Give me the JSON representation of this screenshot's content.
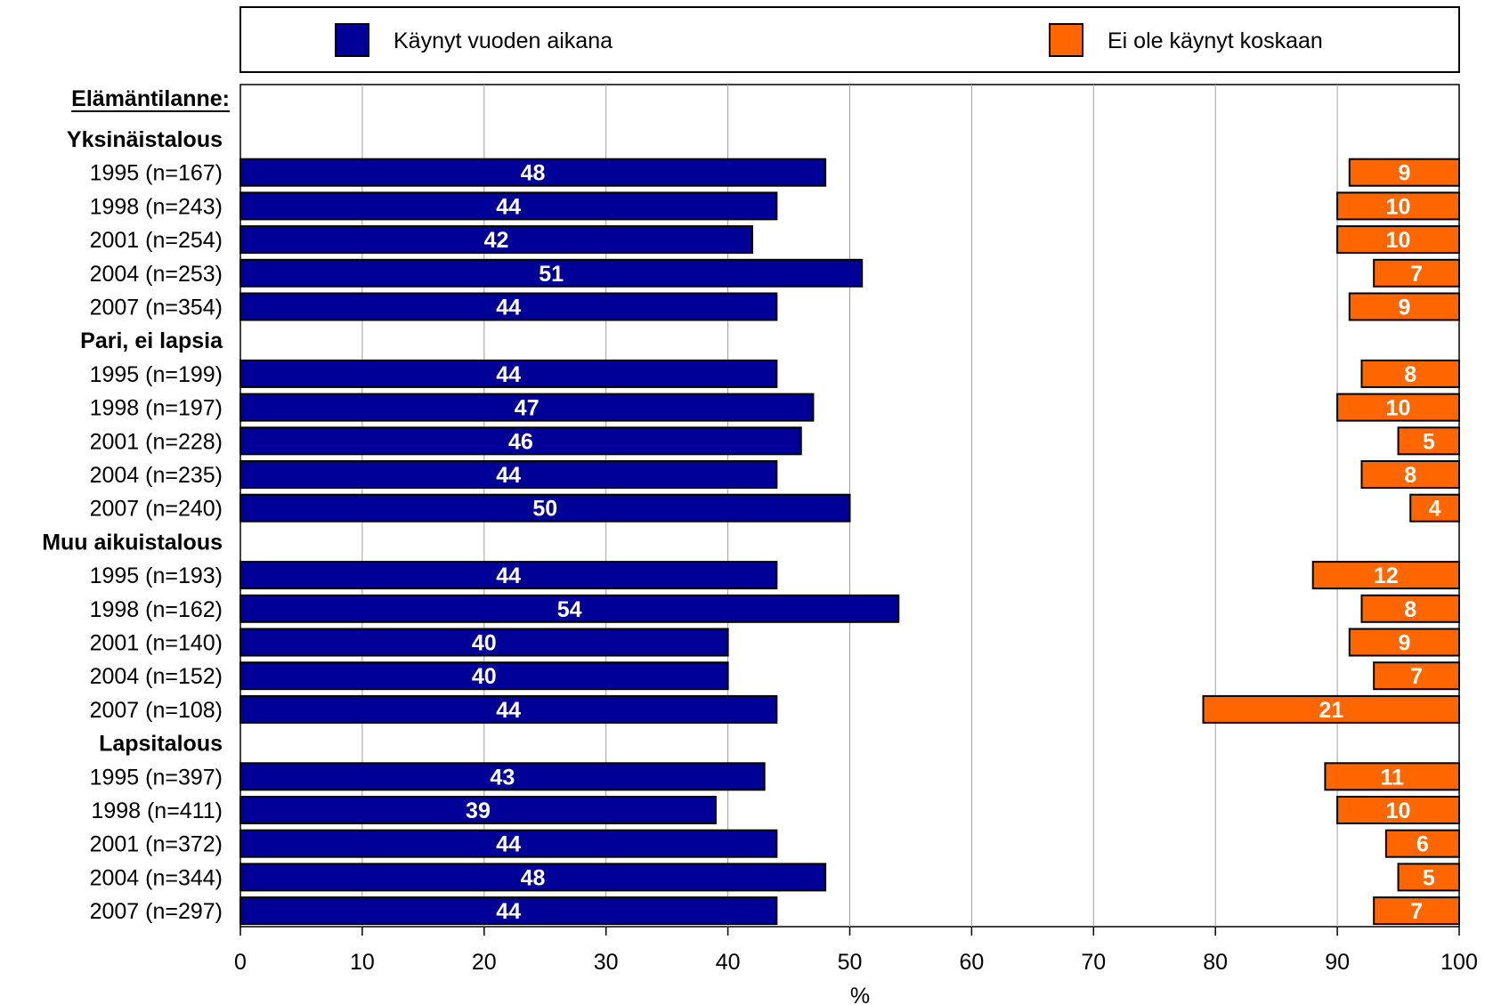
{
  "chart_data": {
    "type": "bar",
    "orientation": "horizontal",
    "title": "",
    "xlabel": "%",
    "ylabel": "",
    "xlim": [
      0,
      100
    ],
    "xticks": [
      0,
      10,
      20,
      30,
      40,
      50,
      60,
      70,
      80,
      90,
      100
    ],
    "grid": "vertical",
    "legend_position": "top",
    "section_header": "Elämäntilanne:",
    "series": [
      {
        "name": "Käynyt vuoden aikana",
        "color": "#000099",
        "anchor": "left"
      },
      {
        "name": "Ei ole käynyt koskaan",
        "color": "#ff6600",
        "anchor": "right"
      }
    ],
    "rows": [
      {
        "label": "Yksinäistalous",
        "group": true
      },
      {
        "label": "1995 (n=167)",
        "values": [
          48,
          9
        ]
      },
      {
        "label": "1998 (n=243)",
        "values": [
          44,
          10
        ]
      },
      {
        "label": "2001 (n=254)",
        "values": [
          42,
          10
        ]
      },
      {
        "label": "2004 (n=253)",
        "values": [
          51,
          7
        ]
      },
      {
        "label": "2007 (n=354)",
        "values": [
          44,
          9
        ]
      },
      {
        "label": "Pari, ei lapsia",
        "group": true
      },
      {
        "label": "1995 (n=199)",
        "values": [
          44,
          8
        ]
      },
      {
        "label": "1998 (n=197)",
        "values": [
          47,
          10
        ]
      },
      {
        "label": "2001 (n=228)",
        "values": [
          46,
          5
        ]
      },
      {
        "label": "2004 (n=235)",
        "values": [
          44,
          8
        ]
      },
      {
        "label": "2007 (n=240)",
        "values": [
          50,
          4
        ]
      },
      {
        "label": "Muu aikuistalous",
        "group": true
      },
      {
        "label": "1995 (n=193)",
        "values": [
          44,
          12
        ]
      },
      {
        "label": "1998 (n=162)",
        "values": [
          54,
          8
        ]
      },
      {
        "label": "2001 (n=140)",
        "values": [
          40,
          9
        ]
      },
      {
        "label": "2004 (n=152)",
        "values": [
          40,
          7
        ]
      },
      {
        "label": "2007 (n=108)",
        "values": [
          44,
          21
        ]
      },
      {
        "label": "Lapsitalous",
        "group": true
      },
      {
        "label": "1995 (n=397)",
        "values": [
          43,
          11
        ]
      },
      {
        "label": "1998 (n=411)",
        "values": [
          39,
          10
        ]
      },
      {
        "label": "2001 (n=372)",
        "values": [
          44,
          6
        ]
      },
      {
        "label": "2004 (n=344)",
        "values": [
          48,
          5
        ]
      },
      {
        "label": "2007 (n=297)",
        "values": [
          44,
          7
        ]
      }
    ]
  }
}
